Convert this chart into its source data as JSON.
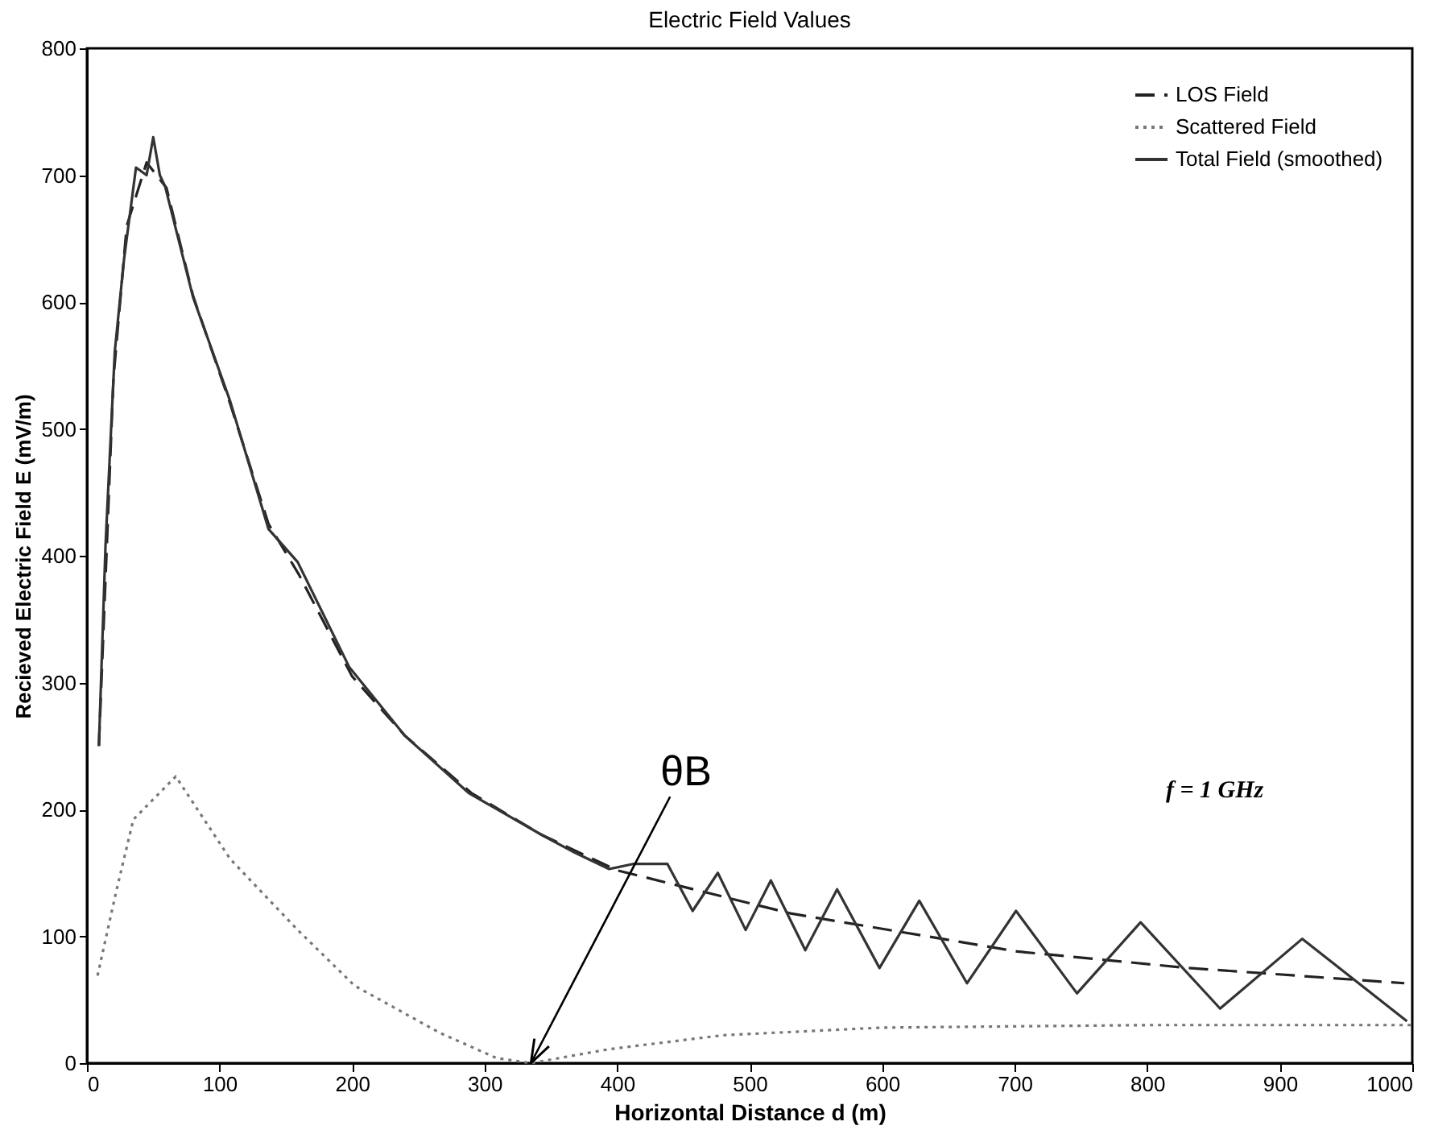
{
  "chart_data": {
    "type": "line",
    "title": "Electric Field Values",
    "xlabel": "Horizontal Distance  d (m)",
    "ylabel": "Recieved Electric Field  E (mV/m)",
    "xlim": [
      0,
      1000
    ],
    "xticks": [
      0,
      100,
      200,
      300,
      400,
      500,
      600,
      700,
      800,
      900,
      1000
    ],
    "ylim": [
      0,
      800
    ],
    "yticks": [
      0,
      100,
      200,
      300,
      400,
      500,
      600,
      700,
      800
    ],
    "grid": false,
    "legend": "top right",
    "marker": "none",
    "series": [
      {
        "name": "LOS Field",
        "color": "#222222",
        "line_style": "dashed",
        "x": [
          9,
          20,
          30,
          45,
          60,
          80,
          108,
          137,
          160,
          200,
          240,
          290,
          343,
          400,
          531,
          702,
          831,
          994
        ],
        "values": [
          250,
          540,
          660,
          710,
          690,
          605,
          520,
          425,
          385,
          305,
          258,
          213,
          180,
          152,
          118,
          88,
          75,
          63
        ]
      },
      {
        "name": "Scattered Field",
        "color": "#777777",
        "line_style": "dotted",
        "x": [
          8,
          22,
          35,
          67,
          108,
          159,
          202,
          266,
          309,
          335,
          394,
          480,
          600,
          800,
          1000
        ],
        "values": [
          69,
          135,
          192,
          226,
          161,
          105,
          61,
          24,
          4,
          0,
          11,
          22,
          28,
          30,
          30
        ]
      },
      {
        "name": "Total Field (smoothed)",
        "color": "#333333",
        "line_style": "solid",
        "x": [
          9,
          14,
          21,
          28,
          37,
          45,
          50,
          55,
          59,
          80,
          108,
          137,
          159,
          198,
          240,
          288,
          343,
          368,
          394,
          412,
          438,
          457,
          476,
          497,
          516,
          542,
          566,
          598,
          628,
          664,
          701,
          747,
          795,
          855,
          917,
          996
        ],
        "values": [
          250,
          408,
          561,
          634,
          706,
          700,
          730,
          700,
          691,
          604,
          522,
          421,
          395,
          312,
          258,
          213,
          180,
          166,
          153,
          157,
          157,
          120,
          150,
          105,
          144,
          89,
          137,
          75,
          128,
          63,
          120,
          55,
          111,
          43,
          98,
          33
        ]
      }
    ],
    "annotations": [
      {
        "text": "θB",
        "x": 335,
        "y": 0
      },
      "f = 1 GHz"
    ]
  }
}
